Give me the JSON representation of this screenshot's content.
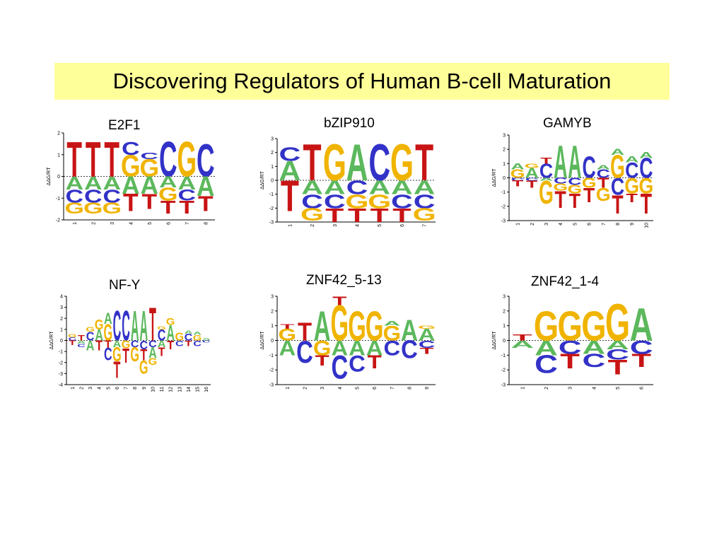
{
  "title": "Discovering Regulators of Human B-cell Maturation",
  "colors": {
    "A": "#5cb85c",
    "C": "#3232c8",
    "G": "#f0b400",
    "T": "#c81414",
    "title_bg": "#ffff99"
  },
  "motifs": [
    {
      "name": "E2F1",
      "ylabel": "ΔΔG/RT",
      "ylim": [
        -2,
        2
      ],
      "yticks": [
        2,
        1,
        0,
        -1,
        -2
      ],
      "positions": [
        {
          "label": "1",
          "stack": [
            [
              "T",
              1.6
            ],
            [
              "A",
              -0.6
            ],
            [
              "C",
              -0.6
            ],
            [
              "G",
              -0.5
            ]
          ]
        },
        {
          "label": "2",
          "stack": [
            [
              "T",
              1.6
            ],
            [
              "A",
              -0.6
            ],
            [
              "C",
              -0.6
            ],
            [
              "G",
              -0.5
            ]
          ]
        },
        {
          "label": "3",
          "stack": [
            [
              "T",
              1.6
            ],
            [
              "A",
              -0.6
            ],
            [
              "C",
              -0.6
            ],
            [
              "G",
              -0.5
            ]
          ]
        },
        {
          "label": "4",
          "stack": [
            [
              "G",
              1.0
            ],
            [
              "C",
              0.6
            ],
            [
              "A",
              -0.8
            ],
            [
              "T",
              -0.8
            ]
          ]
        },
        {
          "label": "5",
          "stack": [
            [
              "G",
              0.8
            ],
            [
              "C",
              0.3
            ],
            [
              "A",
              -0.8
            ],
            [
              "T",
              -0.7
            ]
          ]
        },
        {
          "label": "6",
          "stack": [
            [
              "C",
              1.6
            ],
            [
              "A",
              -0.5
            ],
            [
              "G",
              -0.6
            ],
            [
              "T",
              -0.6
            ]
          ]
        },
        {
          "label": "7",
          "stack": [
            [
              "G",
              1.6
            ],
            [
              "A",
              -0.6
            ],
            [
              "C",
              -0.5
            ],
            [
              "T",
              -0.6
            ]
          ]
        },
        {
          "label": "8",
          "stack": [
            [
              "C",
              1.5
            ],
            [
              "A",
              -0.9
            ],
            [
              "T",
              -0.7
            ]
          ]
        }
      ]
    },
    {
      "name": "bZIP910",
      "ylabel": "ΔΔG/RT",
      "ylim": [
        -3,
        3
      ],
      "yticks": [
        3,
        2,
        1,
        0,
        -1,
        -2,
        -3
      ],
      "positions": [
        {
          "label": "1",
          "stack": [
            [
              "A",
              1.4
            ],
            [
              "C",
              1.0
            ],
            [
              "T",
              -2.2
            ]
          ]
        },
        {
          "label": "2",
          "stack": [
            [
              "T",
              2.6
            ],
            [
              "A",
              -1.0
            ],
            [
              "C",
              -1.0
            ],
            [
              "G",
              -0.9
            ]
          ]
        },
        {
          "label": "3",
          "stack": [
            [
              "G",
              2.6
            ],
            [
              "A",
              -1.0
            ],
            [
              "C",
              -1.0
            ],
            [
              "T",
              -1.0
            ]
          ]
        },
        {
          "label": "4",
          "stack": [
            [
              "A",
              2.6
            ],
            [
              "C",
              -1.0
            ],
            [
              "G",
              -1.0
            ],
            [
              "T",
              -1.0
            ]
          ]
        },
        {
          "label": "5",
          "stack": [
            [
              "C",
              2.6
            ],
            [
              "A",
              -1.0
            ],
            [
              "G",
              -1.0
            ],
            [
              "T",
              -1.0
            ]
          ]
        },
        {
          "label": "6",
          "stack": [
            [
              "G",
              2.6
            ],
            [
              "A",
              -1.0
            ],
            [
              "C",
              -1.0
            ],
            [
              "T",
              -1.0
            ]
          ]
        },
        {
          "label": "7",
          "stack": [
            [
              "T",
              2.6
            ],
            [
              "A",
              -1.0
            ],
            [
              "C",
              -1.0
            ],
            [
              "G",
              -0.9
            ]
          ]
        }
      ]
    },
    {
      "name": "GAMYB",
      "ylabel": "ΔΔG/RT",
      "ylim": [
        -3,
        3
      ],
      "yticks": [
        3,
        2,
        1,
        0,
        -1,
        -2,
        -3
      ],
      "positions": [
        {
          "label": "1",
          "stack": [
            [
              "G",
              0.6
            ],
            [
              "A",
              0.4
            ],
            [
              "C",
              -0.2
            ],
            [
              "T",
              -0.4
            ]
          ]
        },
        {
          "label": "2",
          "stack": [
            [
              "A",
              0.7
            ],
            [
              "G",
              0.3
            ],
            [
              "C",
              -0.2
            ],
            [
              "T",
              -0.5
            ]
          ]
        },
        {
          "label": "3",
          "stack": [
            [
              "C",
              1.0
            ],
            [
              "T",
              0.4
            ],
            [
              "A",
              -0.2
            ],
            [
              "G",
              -1.6
            ]
          ]
        },
        {
          "label": "4",
          "stack": [
            [
              "A",
              2.3
            ],
            [
              "C",
              -0.4
            ],
            [
              "G",
              -0.5
            ],
            [
              "T",
              -1.2
            ]
          ]
        },
        {
          "label": "5",
          "stack": [
            [
              "A",
              2.3
            ],
            [
              "C",
              -0.5
            ],
            [
              "G",
              -0.6
            ],
            [
              "T",
              -1.0
            ]
          ]
        },
        {
          "label": "6",
          "stack": [
            [
              "C",
              1.5
            ],
            [
              "G",
              -0.7
            ],
            [
              "T",
              -1.0
            ]
          ]
        },
        {
          "label": "7",
          "stack": [
            [
              "C",
              0.6
            ],
            [
              "A",
              0.3
            ],
            [
              "T",
              -0.7
            ],
            [
              "G",
              -0.9
            ]
          ]
        },
        {
          "label": "8",
          "stack": [
            [
              "G",
              1.6
            ],
            [
              "A",
              0.4
            ],
            [
              "C",
              -1.2
            ],
            [
              "T",
              -1.3
            ]
          ]
        },
        {
          "label": "9",
          "stack": [
            [
              "C",
              1.1
            ],
            [
              "A",
              0.4
            ],
            [
              "G",
              -1.1
            ],
            [
              "T",
              -0.6
            ]
          ]
        },
        {
          "label": "10",
          "stack": [
            [
              "C",
              1.4
            ],
            [
              "A",
              0.4
            ],
            [
              "G",
              -1.1
            ],
            [
              "T",
              -1.4
            ]
          ]
        }
      ]
    },
    {
      "name": "NF-Y",
      "ylabel": "ΔΔG/RT",
      "ylim": [
        -4,
        4
      ],
      "yticks": [
        4,
        3,
        2,
        1,
        0,
        -1,
        -2,
        -3,
        -4
      ],
      "positions": [
        {
          "label": "1",
          "stack": [
            [
              "C",
              0.3
            ],
            [
              "G",
              0.3
            ],
            [
              "T",
              -0.4
            ]
          ]
        },
        {
          "label": "2",
          "stack": [
            [
              "T",
              0.5
            ],
            [
              "A",
              -0.3
            ],
            [
              "C",
              -0.3
            ]
          ]
        },
        {
          "label": "3",
          "stack": [
            [
              "C",
              0.8
            ],
            [
              "G",
              0.4
            ],
            [
              "A",
              -0.9
            ]
          ]
        },
        {
          "label": "4",
          "stack": [
            [
              "A",
              1.0
            ],
            [
              "G",
              0.9
            ],
            [
              "T",
              -0.9
            ]
          ]
        },
        {
          "label": "5",
          "stack": [
            [
              "G",
              1.5
            ],
            [
              "A",
              1.0
            ],
            [
              "T",
              -0.7
            ],
            [
              "C",
              -1.1
            ]
          ]
        },
        {
          "label": "6",
          "stack": [
            [
              "C",
              2.7
            ],
            [
              "A",
              -0.6
            ],
            [
              "G",
              -1.3
            ],
            [
              "T",
              -1.5
            ]
          ]
        },
        {
          "label": "7",
          "stack": [
            [
              "C",
              2.7
            ],
            [
              "G",
              -0.7
            ],
            [
              "T",
              -1.3
            ]
          ]
        },
        {
          "label": "8",
          "stack": [
            [
              "A",
              2.7
            ],
            [
              "C",
              -0.6
            ],
            [
              "G",
              -1.3
            ]
          ]
        },
        {
          "label": "9",
          "stack": [
            [
              "A",
              2.7
            ],
            [
              "C",
              -0.8
            ],
            [
              "T",
              -1.0
            ],
            [
              "G",
              -1.2
            ]
          ]
        },
        {
          "label": "10",
          "stack": [
            [
              "T",
              3.0
            ],
            [
              "C",
              -0.6
            ],
            [
              "A",
              -1.0
            ],
            [
              "G",
              -0.6
            ]
          ]
        },
        {
          "label": "11",
          "stack": [
            [
              "C",
              1.0
            ],
            [
              "G",
              0.3
            ],
            [
              "A",
              -0.6
            ],
            [
              "T",
              -0.8
            ]
          ]
        },
        {
          "label": "12",
          "stack": [
            [
              "A",
              1.4
            ],
            [
              "G",
              0.6
            ],
            [
              "T",
              -0.8
            ]
          ]
        },
        {
          "label": "13",
          "stack": [
            [
              "G",
              0.7
            ],
            [
              "C",
              -0.5
            ]
          ]
        },
        {
          "label": "14",
          "stack": [
            [
              "C",
              0.6
            ],
            [
              "A",
              0.3
            ],
            [
              "T",
              -0.5
            ]
          ]
        },
        {
          "label": "15",
          "stack": [
            [
              "G",
              0.5
            ],
            [
              "A",
              0.3
            ],
            [
              "C",
              -0.5
            ]
          ]
        },
        {
          "label": "16",
          "stack": [
            [
              "S",
              0.2
            ],
            [
              "C",
              -0.2
            ]
          ]
        }
      ]
    },
    {
      "name": "ZNF42_5-13",
      "ylabel": "ΔΔG/RT",
      "ylim": [
        -3,
        3
      ],
      "yticks": [
        3,
        2,
        1,
        0,
        -1,
        -2,
        -3
      ],
      "positions": [
        {
          "label": "1",
          "stack": [
            [
              "G",
              0.8
            ],
            [
              "T",
              0.3
            ],
            [
              "A",
              -1.0
            ]
          ]
        },
        {
          "label": "2",
          "stack": [
            [
              "T",
              1.2
            ],
            [
              "C",
              -1.5
            ]
          ]
        },
        {
          "label": "3",
          "stack": [
            [
              "A",
              2.0
            ],
            [
              "G",
              -1.0
            ],
            [
              "T",
              -0.7
            ]
          ]
        },
        {
          "label": "4",
          "stack": [
            [
              "G",
              2.4
            ],
            [
              "T",
              0.6
            ],
            [
              "A",
              -1.0
            ],
            [
              "C",
              -1.6
            ]
          ]
        },
        {
          "label": "5",
          "stack": [
            [
              "G",
              2.0
            ],
            [
              "A",
              -1.0
            ],
            [
              "C",
              -1.1
            ]
          ]
        },
        {
          "label": "6",
          "stack": [
            [
              "G",
              2.0
            ],
            [
              "A",
              -1.0
            ],
            [
              "T",
              -0.9
            ]
          ]
        },
        {
          "label": "7",
          "stack": [
            [
              "G",
              1.0
            ],
            [
              "A",
              0.3
            ],
            [
              "C",
              -1.0
            ]
          ]
        },
        {
          "label": "8",
          "stack": [
            [
              "A",
              1.4
            ],
            [
              "C",
              -1.2
            ]
          ]
        },
        {
          "label": "9",
          "stack": [
            [
              "A",
              0.8
            ],
            [
              "G",
              0.2
            ],
            [
              "C",
              -0.5
            ],
            [
              "T",
              -0.4
            ]
          ]
        }
      ]
    },
    {
      "name": "ZNF42_1-4",
      "ylabel": "ΔΔG/RT",
      "ylim": [
        -3,
        3
      ],
      "yticks": [
        3,
        2,
        1,
        0,
        -1,
        -2,
        -3
      ],
      "positions": [
        {
          "label": "1",
          "stack": [
            [
              "T",
              0.4
            ],
            [
              "A",
              -0.5
            ]
          ]
        },
        {
          "label": "2",
          "stack": [
            [
              "G",
              2.0
            ],
            [
              "A",
              -1.0
            ],
            [
              "C",
              -1.2
            ]
          ]
        },
        {
          "label": "3",
          "stack": [
            [
              "G",
              2.0
            ],
            [
              "C",
              -0.9
            ],
            [
              "T",
              -1.0
            ]
          ]
        },
        {
          "label": "4",
          "stack": [
            [
              "G",
              2.0
            ],
            [
              "A",
              -0.9
            ],
            [
              "C",
              -0.9
            ]
          ]
        },
        {
          "label": "5",
          "stack": [
            [
              "G",
              2.5
            ],
            [
              "A",
              -0.6
            ],
            [
              "C",
              -0.7
            ],
            [
              "T",
              -1.0
            ]
          ]
        },
        {
          "label": "6",
          "stack": [
            [
              "A",
              2.2
            ],
            [
              "C",
              -0.9
            ],
            [
              "T",
              -0.9
            ]
          ]
        }
      ]
    }
  ]
}
